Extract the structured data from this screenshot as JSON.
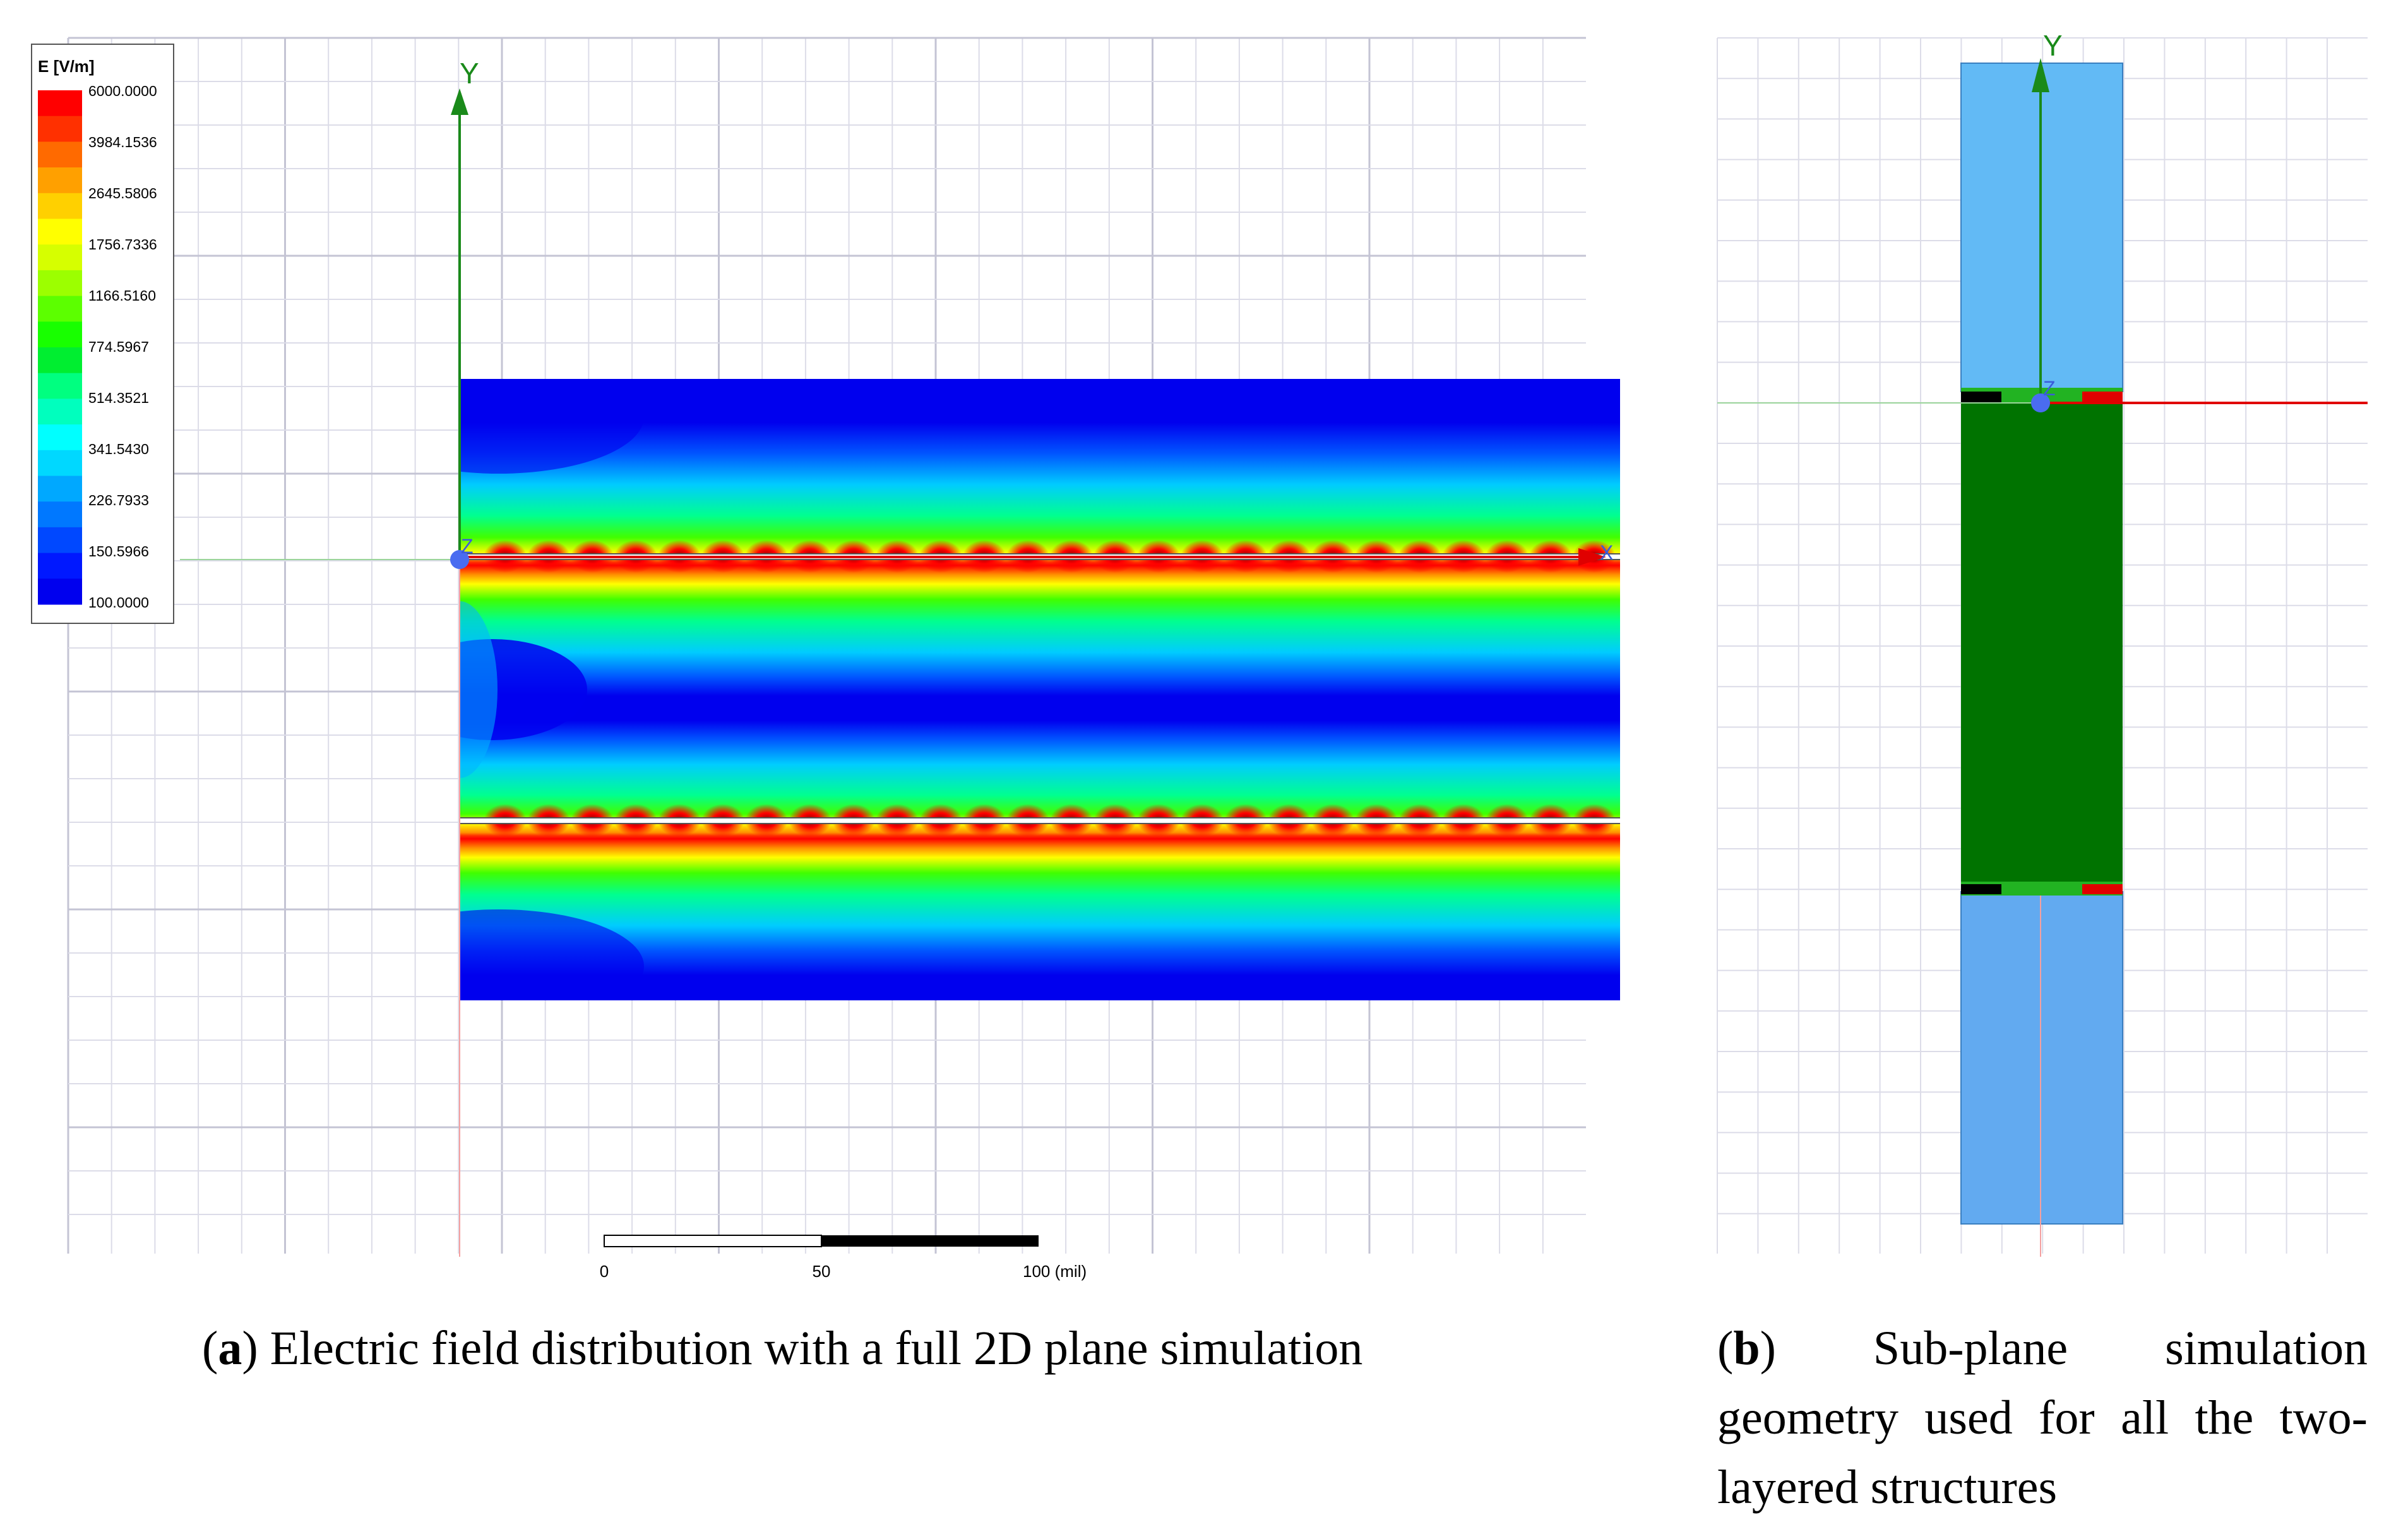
{
  "legend": {
    "title": "E [V/m]",
    "labels": [
      "6000.0000",
      "3984.1536",
      "2645.5806",
      "1756.7336",
      "1166.5160",
      "774.5967",
      "514.3521",
      "341.5430",
      "226.7933",
      "150.5966",
      "100.0000"
    ],
    "colors": [
      "#ff0000",
      "#ff3000",
      "#ff6a00",
      "#ffa000",
      "#ffd000",
      "#ffff00",
      "#d6ff00",
      "#9cff00",
      "#5cff00",
      "#18ff00",
      "#00ee30",
      "#00ff80",
      "#00ffbe",
      "#00ffff",
      "#00d8ff",
      "#00a8ff",
      "#0078ff",
      "#0048ff",
      "#0018ff",
      "#0000ee"
    ]
  },
  "panel_a": {
    "axis_y_label": "Y",
    "axis_z_label": "Z",
    "axis_x_label": "X",
    "scale_ticks": [
      "0",
      "50",
      "100 (mil)"
    ]
  },
  "panel_b": {
    "axis_y_label": "Y",
    "axis_z_label": "Z"
  },
  "captions": {
    "a_letter": "a",
    "a_text": ") Electric field distribution with a full 2D plane simulation",
    "b_letter": "b",
    "b_text": ") Sub-plane simulation geometry used for all the two-layered structures"
  },
  "colors": {
    "grid": "#dcdce8",
    "substrate": "#007300",
    "air": "#62baf5",
    "axis_green": "#1a8a1a",
    "axis_red": "#e00000"
  }
}
